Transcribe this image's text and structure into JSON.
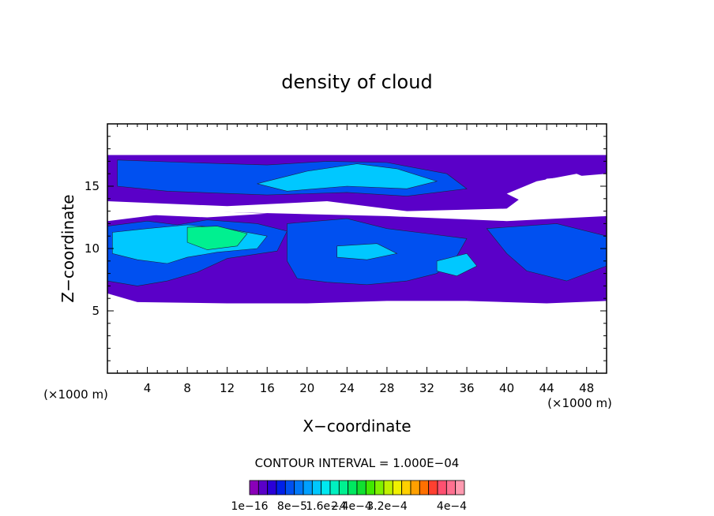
{
  "chart_data": {
    "type": "heatmap",
    "title": "density of cloud",
    "xlabel": "X−coordinate",
    "ylabel": "Z−coordinate",
    "x_unit_left": "(×1000 m)",
    "x_unit_right": "(×1000 m)",
    "xlim": [
      0,
      50
    ],
    "ylim": [
      0,
      20
    ],
    "x_ticks": [
      4,
      8,
      12,
      16,
      20,
      24,
      28,
      32,
      36,
      40,
      44,
      48
    ],
    "y_ticks": [
      5,
      10,
      15
    ],
    "contour_interval_label": "CONTOUR INTERVAL = 1.000E−04",
    "colorbar_labels": [
      "1e−16",
      "8e−5",
      "1.6e−4",
      "2.4e−4",
      "3.2e−4",
      "4e−4"
    ],
    "colorbar_colors": [
      "#8a00b8",
      "#5a00c8",
      "#2a00d8",
      "#0020e8",
      "#0050f0",
      "#0078f8",
      "#00a0ff",
      "#00c8ff",
      "#00e8f0",
      "#00f0c0",
      "#00f090",
      "#00e860",
      "#10e030",
      "#40e800",
      "#80f000",
      "#c0f000",
      "#f0f000",
      "#ffd000",
      "#ffa000",
      "#ff7000",
      "#ff4030",
      "#ff5070",
      "#ff7090",
      "#ff9ab0"
    ],
    "regions": [
      {
        "name": "upper-cloud-layer",
        "level": 1,
        "polygon": [
          [
            0,
            17.5
          ],
          [
            50,
            17.5
          ],
          [
            50,
            16
          ],
          [
            44,
            15.6
          ],
          [
            40,
            13.2
          ],
          [
            30,
            13.0
          ],
          [
            22,
            13.8
          ],
          [
            12,
            13.4
          ],
          [
            0,
            13.8
          ]
        ]
      },
      {
        "name": "lower-cloud-layer",
        "level": 1,
        "polygon": [
          [
            0,
            12.2
          ],
          [
            8,
            13.0
          ],
          [
            18,
            12.8
          ],
          [
            28,
            12.6
          ],
          [
            40,
            12.2
          ],
          [
            50,
            12.6
          ],
          [
            50,
            5.8
          ],
          [
            44,
            5.6
          ],
          [
            36,
            5.8
          ],
          [
            28,
            5.8
          ],
          [
            20,
            5.6
          ],
          [
            12,
            5.6
          ],
          [
            3,
            5.7
          ],
          [
            0,
            6.4
          ]
        ]
      },
      {
        "name": "upper-blue-core",
        "level": 4,
        "polygon": [
          [
            1,
            17.1
          ],
          [
            8,
            16.9
          ],
          [
            16,
            16.7
          ],
          [
            22,
            17.0
          ],
          [
            28,
            16.9
          ],
          [
            34,
            16.0
          ],
          [
            36,
            14.8
          ],
          [
            30,
            14.2
          ],
          [
            24,
            14.5
          ],
          [
            16,
            14.3
          ],
          [
            6,
            14.6
          ],
          [
            1,
            15.0
          ]
        ]
      },
      {
        "name": "upper-cyan-streak",
        "level": 7,
        "polygon": [
          [
            15,
            15.2
          ],
          [
            20,
            16.2
          ],
          [
            25,
            16.8
          ],
          [
            29,
            16.4
          ],
          [
            33,
            15.4
          ],
          [
            30,
            14.8
          ],
          [
            24,
            15.0
          ],
          [
            18,
            14.6
          ]
        ]
      },
      {
        "name": "left-blue-mass",
        "level": 4,
        "polygon": [
          [
            0,
            11.8
          ],
          [
            4,
            12.2
          ],
          [
            7,
            11.9
          ],
          [
            10,
            12.3
          ],
          [
            15,
            12.0
          ],
          [
            18,
            11.4
          ],
          [
            17,
            9.8
          ],
          [
            12,
            9.2
          ],
          [
            9,
            8.1
          ],
          [
            6,
            7.4
          ],
          [
            3,
            7.0
          ],
          [
            0,
            7.4
          ]
        ]
      },
      {
        "name": "left-cyan-core",
        "level": 7,
        "polygon": [
          [
            0.5,
            11.3
          ],
          [
            4,
            11.6
          ],
          [
            8,
            11.9
          ],
          [
            12,
            11.6
          ],
          [
            16,
            11.0
          ],
          [
            15,
            10.0
          ],
          [
            11,
            9.7
          ],
          [
            8,
            9.3
          ],
          [
            6,
            8.8
          ],
          [
            3,
            9.1
          ],
          [
            0.5,
            9.6
          ]
        ]
      },
      {
        "name": "left-green-core",
        "level": 10,
        "polygon": [
          [
            8,
            11.7
          ],
          [
            11,
            11.8
          ],
          [
            14,
            11.2
          ],
          [
            13,
            10.2
          ],
          [
            10,
            9.9
          ],
          [
            8,
            10.5
          ]
        ]
      },
      {
        "name": "mid-blue-cells",
        "level": 4,
        "polygon": [
          [
            18,
            12.0
          ],
          [
            24,
            12.4
          ],
          [
            28,
            11.6
          ],
          [
            32,
            11.2
          ],
          [
            36,
            10.8
          ],
          [
            35,
            9.4
          ],
          [
            33,
            8.0
          ],
          [
            30,
            7.4
          ],
          [
            26,
            7.1
          ],
          [
            22,
            7.3
          ],
          [
            19,
            7.6
          ],
          [
            18,
            9.0
          ]
        ]
      },
      {
        "name": "mid-cyan-cells",
        "level": 7,
        "polygon": [
          [
            23,
            10.2
          ],
          [
            27,
            10.4
          ],
          [
            29,
            9.6
          ],
          [
            26,
            9.1
          ],
          [
            23,
            9.3
          ]
        ]
      },
      {
        "name": "right-cyan-cells",
        "level": 7,
        "polygon": [
          [
            33,
            9.0
          ],
          [
            36,
            9.6
          ],
          [
            37,
            8.6
          ],
          [
            35,
            7.8
          ],
          [
            33,
            8.2
          ]
        ]
      },
      {
        "name": "right-blue-cells",
        "level": 4,
        "polygon": [
          [
            38,
            11.6
          ],
          [
            45,
            12.0
          ],
          [
            50,
            11.0
          ],
          [
            50,
            8.6
          ],
          [
            46,
            7.4
          ],
          [
            42,
            8.2
          ],
          [
            40,
            9.6
          ]
        ]
      }
    ],
    "clear_gaps": [
      {
        "name": "upper-right-gap",
        "polygon": [
          [
            43,
            15.4
          ],
          [
            47,
            16.0
          ],
          [
            50,
            15.0
          ],
          [
            50,
            13.0
          ],
          [
            46,
            13.4
          ],
          [
            42,
            13.6
          ],
          [
            40,
            14.4
          ]
        ]
      },
      {
        "name": "mid-left-gap",
        "polygon": [
          [
            0,
            13.1
          ],
          [
            5,
            13.3
          ],
          [
            10,
            13.0
          ],
          [
            16,
            12.8
          ],
          [
            10,
            12.5
          ],
          [
            4,
            12.7
          ],
          [
            0,
            12.6
          ]
        ]
      }
    ]
  }
}
